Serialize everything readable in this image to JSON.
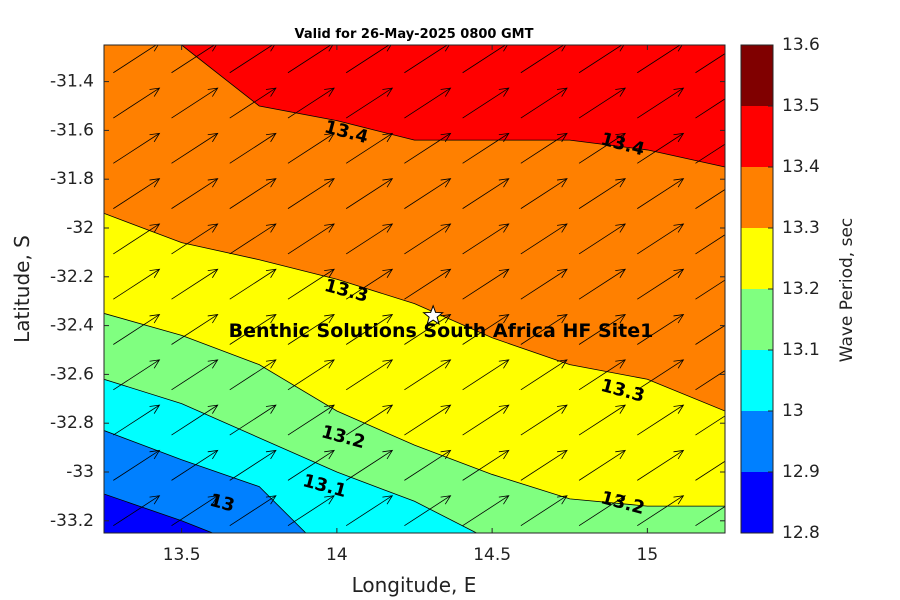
{
  "chart_data": {
    "type": "contour",
    "title": "Valid for 26-May-2025 0800 GMT",
    "xlabel": "Longitude, E",
    "ylabel": "Latitude, S",
    "xlim": [
      13.25,
      15.25
    ],
    "ylim": [
      -33.25,
      -31.25
    ],
    "xticks": [
      13.5,
      14,
      14.5,
      15
    ],
    "xtick_labels": [
      "13.5",
      "14",
      "14.5",
      "15"
    ],
    "yticks": [
      -31.4,
      -31.6,
      -31.8,
      -32,
      -32.2,
      -32.4,
      -32.6,
      -32.8,
      -33,
      -33.2
    ],
    "ytick_labels": [
      "-31.4",
      "-31.6",
      "-31.8",
      "-32",
      "-32.2",
      "-32.4",
      "-32.6",
      "-32.8",
      "-33",
      "-33.2"
    ],
    "colorbar": {
      "label": "Wave Period, sec",
      "levels": [
        12.8,
        12.9,
        13,
        13.1,
        13.2,
        13.3,
        13.4,
        13.5,
        13.6
      ],
      "level_labels": [
        "12.8",
        "12.9",
        "13",
        "13.1",
        "13.2",
        "13.3",
        "13.4",
        "13.5",
        "13.6"
      ],
      "colors": [
        "#0000ff",
        "#0080ff",
        "#00ffff",
        "#80ff80",
        "#ffff00",
        "#ff8000",
        "#ff0000",
        "#800000"
      ]
    },
    "contours": [
      {
        "level": 13.4,
        "label": "13.4",
        "points": [
          [
            13.5,
            -31.25
          ],
          [
            13.75,
            -31.5
          ],
          [
            14,
            -31.56
          ],
          [
            14.25,
            -31.64
          ],
          [
            14.5,
            -31.64
          ],
          [
            14.75,
            -31.64
          ],
          [
            15,
            -31.68
          ],
          [
            15.25,
            -31.75
          ]
        ]
      },
      {
        "level": 13.3,
        "label": "13.3",
        "points": [
          [
            13.25,
            -31.94
          ],
          [
            13.5,
            -32.06
          ],
          [
            13.75,
            -32.13
          ],
          [
            14,
            -32.21
          ],
          [
            14.25,
            -32.31
          ],
          [
            14.5,
            -32.45
          ],
          [
            14.75,
            -32.56
          ],
          [
            15,
            -32.62
          ],
          [
            15.25,
            -32.75
          ]
        ]
      },
      {
        "level": 13.2,
        "label": "13.2",
        "points": [
          [
            13.25,
            -32.35
          ],
          [
            13.5,
            -32.44
          ],
          [
            13.75,
            -32.56
          ],
          [
            14,
            -32.75
          ],
          [
            14.25,
            -32.89
          ],
          [
            14.5,
            -33.01
          ],
          [
            14.75,
            -33.11
          ],
          [
            15,
            -33.14
          ],
          [
            15.25,
            -33.14
          ]
        ]
      },
      {
        "level": 13.1,
        "label": "13.1",
        "points": [
          [
            13.25,
            -32.62
          ],
          [
            13.5,
            -32.72
          ],
          [
            13.75,
            -32.86
          ],
          [
            14,
            -33.0
          ],
          [
            14.25,
            -33.12
          ],
          [
            14.45,
            -33.25
          ]
        ]
      },
      {
        "level": 13.0,
        "label": "13",
        "points": [
          [
            13.25,
            -32.83
          ],
          [
            13.5,
            -32.95
          ],
          [
            13.75,
            -33.06
          ],
          [
            13.9,
            -33.25
          ]
        ]
      },
      {
        "level": 12.9,
        "label": "",
        "points": [
          [
            13.25,
            -33.09
          ],
          [
            13.5,
            -33.2
          ],
          [
            13.6,
            -33.25
          ]
        ]
      }
    ],
    "contour_labels": [
      {
        "text": "13.4",
        "lon": 14.03,
        "lat": -31.61
      },
      {
        "text": "13.4",
        "lon": 14.92,
        "lat": -31.66
      },
      {
        "text": "13.3",
        "lon": 14.03,
        "lat": -32.26
      },
      {
        "text": "13.3",
        "lon": 14.92,
        "lat": -32.67
      },
      {
        "text": "13.2",
        "lon": 14.02,
        "lat": -32.86
      },
      {
        "text": "13.2",
        "lon": 14.92,
        "lat": -33.13
      },
      {
        "text": "13.1",
        "lon": 13.96,
        "lat": -33.06
      },
      {
        "text": "13",
        "lon": 13.63,
        "lat": -33.13
      }
    ],
    "vector_field": {
      "direction_deg_from_east": 33,
      "note_color": "#000000",
      "spacing_deg": 0.1875
    },
    "site": {
      "name": "Benthic Solutions South Africa HF Site1",
      "lon": 14.31,
      "lat": -32.36
    }
  }
}
